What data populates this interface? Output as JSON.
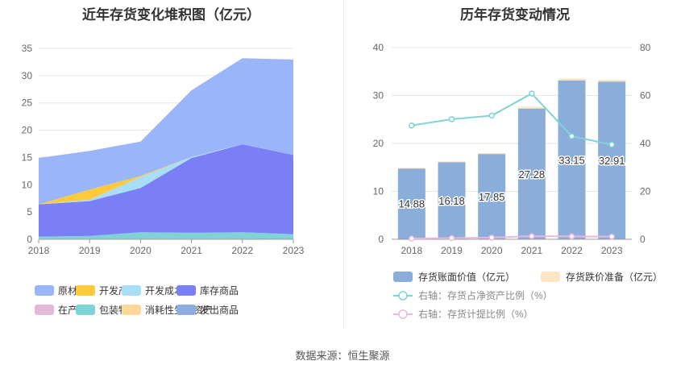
{
  "source": "数据来源：恒生聚源",
  "chart_data": [
    {
      "type": "area",
      "stacked": true,
      "title": "近年存货变化堆积图（亿元）",
      "x": [
        "2018",
        "2019",
        "2020",
        "2021",
        "2022",
        "2023"
      ],
      "ylim": [
        0,
        35
      ],
      "yticks": [
        0,
        5,
        10,
        15,
        20,
        25,
        30,
        35
      ],
      "series": [
        {
          "name": "在产品",
          "color": "#e3b8d9",
          "values": [
            0.1,
            0.1,
            0.1,
            0.1,
            0.1,
            0.05
          ]
        },
        {
          "name": "包装物",
          "color": "#7fd3d6",
          "values": [
            0.4,
            0.5,
            1.2,
            1.1,
            1.2,
            0.9
          ]
        },
        {
          "name": "库存商品",
          "color": "#7b7ff5",
          "values": [
            5.9,
            6.4,
            8.1,
            13.7,
            16.1,
            14.5
          ]
        },
        {
          "name": "开发成本",
          "color": "#a9def8",
          "values": [
            0,
            0.3,
            2.0,
            0.2,
            0,
            0
          ]
        },
        {
          "name": "开发产品",
          "color": "#ffca3a",
          "values": [
            0,
            1.8,
            0.2,
            0,
            0,
            0
          ]
        },
        {
          "name": "消耗性生物资产",
          "color": "#ffd899",
          "values": [
            0,
            0,
            0,
            0,
            0,
            0
          ]
        },
        {
          "name": "发出商品",
          "color": "#8faede",
          "values": [
            0,
            0,
            0,
            0,
            0,
            0
          ]
        },
        {
          "name": "原材料",
          "color": "#9bb5fa",
          "values": [
            8.5,
            7.1,
            6.3,
            12.2,
            15.8,
            17.5
          ]
        }
      ],
      "legend_order": [
        "原材料",
        "开发产品",
        "开发成本",
        "库存商品",
        "在产品",
        "包装物",
        "消耗性生物资产",
        "发出商品"
      ],
      "legend_placement": "bottom"
    },
    {
      "type": "bar",
      "title": "历年存货变动情况",
      "categories": [
        "2018",
        "2019",
        "2020",
        "2021",
        "2022",
        "2023"
      ],
      "ylim": [
        0,
        40
      ],
      "yticks": [
        0,
        10,
        20,
        30,
        40
      ],
      "y2lim": [
        0,
        80
      ],
      "y2ticks": [
        0,
        20,
        40,
        60,
        80
      ],
      "bar_series": [
        {
          "name": "存货账面价值（亿元）",
          "color": "#8badda",
          "values": [
            14.88,
            16.18,
            17.85,
            27.28,
            33.15,
            32.91
          ],
          "labels": [
            "14.88",
            "16.18",
            "17.85",
            "27.28",
            "33.15",
            "32.91"
          ]
        },
        {
          "name": "存货跌价准备（亿元）",
          "color": "#fde6c3",
          "values": [
            0.05,
            0.08,
            0.12,
            0.35,
            0.4,
            0.35
          ]
        }
      ],
      "line_series": [
        {
          "name": "右轴：存货占净资产比例（%）",
          "color": "#7fd3d6",
          "values": [
            47.5,
            50.1,
            51.6,
            60.8,
            43.0,
            39.5
          ]
        },
        {
          "name": "右轴：存货计提比例（%）",
          "color": "#eab8dc",
          "values": [
            0.3,
            0.5,
            0.7,
            1.3,
            1.2,
            1.1
          ]
        }
      ],
      "legend_placement": "bottom"
    }
  ]
}
